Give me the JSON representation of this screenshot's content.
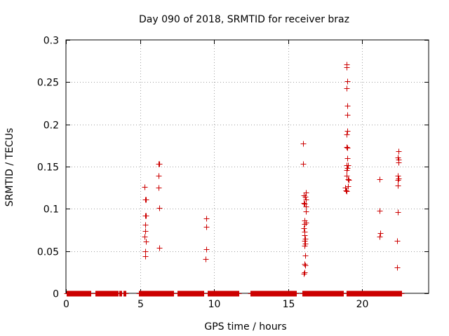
{
  "chart_data": {
    "type": "scatter",
    "title": "Day 090 of 2018, SRMTID for receiver braz",
    "xlabel": "GPS time / hours",
    "ylabel": "SRMTID / TECUs",
    "xlim": [
      0,
      24.5
    ],
    "ylim": [
      0,
      0.3
    ],
    "xticks": [
      0,
      5,
      10,
      15,
      20
    ],
    "xtick_labels": [
      "0",
      "5",
      "10",
      "15",
      "20"
    ],
    "yticks": [
      0,
      0.05,
      0.1,
      0.15,
      0.2,
      0.25,
      0.3
    ],
    "ytick_labels": [
      "0",
      "0.05",
      "0.1",
      "0.15",
      "0.2",
      "0.25",
      "0.3"
    ],
    "grid": true,
    "marker": "+",
    "color": "#cc0000",
    "series": [
      {
        "name": "SRMTID",
        "points": [
          [
            5.3,
            0.126
          ],
          [
            5.35,
            0.111
          ],
          [
            5.4,
            0.111
          ],
          [
            5.35,
            0.092
          ],
          [
            5.4,
            0.092
          ],
          [
            5.35,
            0.081
          ],
          [
            5.35,
            0.074
          ],
          [
            5.3,
            0.067
          ],
          [
            5.4,
            0.061
          ],
          [
            5.35,
            0.05
          ],
          [
            5.35,
            0.044
          ],
          [
            6.25,
            0.153
          ],
          [
            6.3,
            0.153
          ],
          [
            6.25,
            0.139
          ],
          [
            6.25,
            0.125
          ],
          [
            6.3,
            0.101
          ],
          [
            6.3,
            0.054
          ],
          [
            9.5,
            0.089
          ],
          [
            9.5,
            0.079
          ],
          [
            9.5,
            0.052
          ],
          [
            9.45,
            0.041
          ],
          [
            16.0,
            0.177
          ],
          [
            16.0,
            0.153
          ],
          [
            16.2,
            0.119
          ],
          [
            16.05,
            0.116
          ],
          [
            16.15,
            0.114
          ],
          [
            16.2,
            0.111
          ],
          [
            16.05,
            0.107
          ],
          [
            16.1,
            0.106
          ],
          [
            16.2,
            0.103
          ],
          [
            16.2,
            0.097
          ],
          [
            16.1,
            0.086
          ],
          [
            16.2,
            0.084
          ],
          [
            16.1,
            0.082
          ],
          [
            16.05,
            0.077
          ],
          [
            16.1,
            0.073
          ],
          [
            16.1,
            0.069
          ],
          [
            16.15,
            0.065
          ],
          [
            16.1,
            0.062
          ],
          [
            16.15,
            0.059
          ],
          [
            16.1,
            0.056
          ],
          [
            16.15,
            0.045
          ],
          [
            16.1,
            0.035
          ],
          [
            16.15,
            0.033
          ],
          [
            16.1,
            0.025
          ],
          [
            16.05,
            0.023
          ],
          [
            18.95,
            0.271
          ],
          [
            18.95,
            0.268
          ],
          [
            19.0,
            0.251
          ],
          [
            18.95,
            0.243
          ],
          [
            19.0,
            0.222
          ],
          [
            19.0,
            0.211
          ],
          [
            19.0,
            0.192
          ],
          [
            18.95,
            0.188
          ],
          [
            18.95,
            0.173
          ],
          [
            19.0,
            0.172
          ],
          [
            19.0,
            0.16
          ],
          [
            18.95,
            0.152
          ],
          [
            19.05,
            0.152
          ],
          [
            19.0,
            0.148
          ],
          [
            18.95,
            0.146
          ],
          [
            18.95,
            0.139
          ],
          [
            19.05,
            0.135
          ],
          [
            19.1,
            0.134
          ],
          [
            19.05,
            0.127
          ],
          [
            18.85,
            0.125
          ],
          [
            18.9,
            0.122
          ],
          [
            18.95,
            0.121
          ],
          [
            21.2,
            0.135
          ],
          [
            21.2,
            0.098
          ],
          [
            21.25,
            0.071
          ],
          [
            21.2,
            0.067
          ],
          [
            22.45,
            0.168
          ],
          [
            22.4,
            0.161
          ],
          [
            22.45,
            0.158
          ],
          [
            22.45,
            0.155
          ],
          [
            22.4,
            0.139
          ],
          [
            22.45,
            0.136
          ],
          [
            22.4,
            0.134
          ],
          [
            22.4,
            0.128
          ],
          [
            22.4,
            0.096
          ],
          [
            22.35,
            0.062
          ],
          [
            22.35,
            0.031
          ]
        ],
        "baseline_intervals": [
          [
            0.05,
            1.65
          ],
          [
            2.0,
            3.5
          ],
          [
            3.6,
            3.75
          ],
          [
            4.05,
            3.9
          ],
          [
            4.95,
            7.25
          ],
          [
            7.55,
            9.3
          ],
          [
            9.55,
            11.65
          ],
          [
            12.45,
            15.55
          ],
          [
            15.95,
            18.7
          ],
          [
            18.95,
            22.65
          ]
        ],
        "baseline_value": 0
      }
    ]
  }
}
